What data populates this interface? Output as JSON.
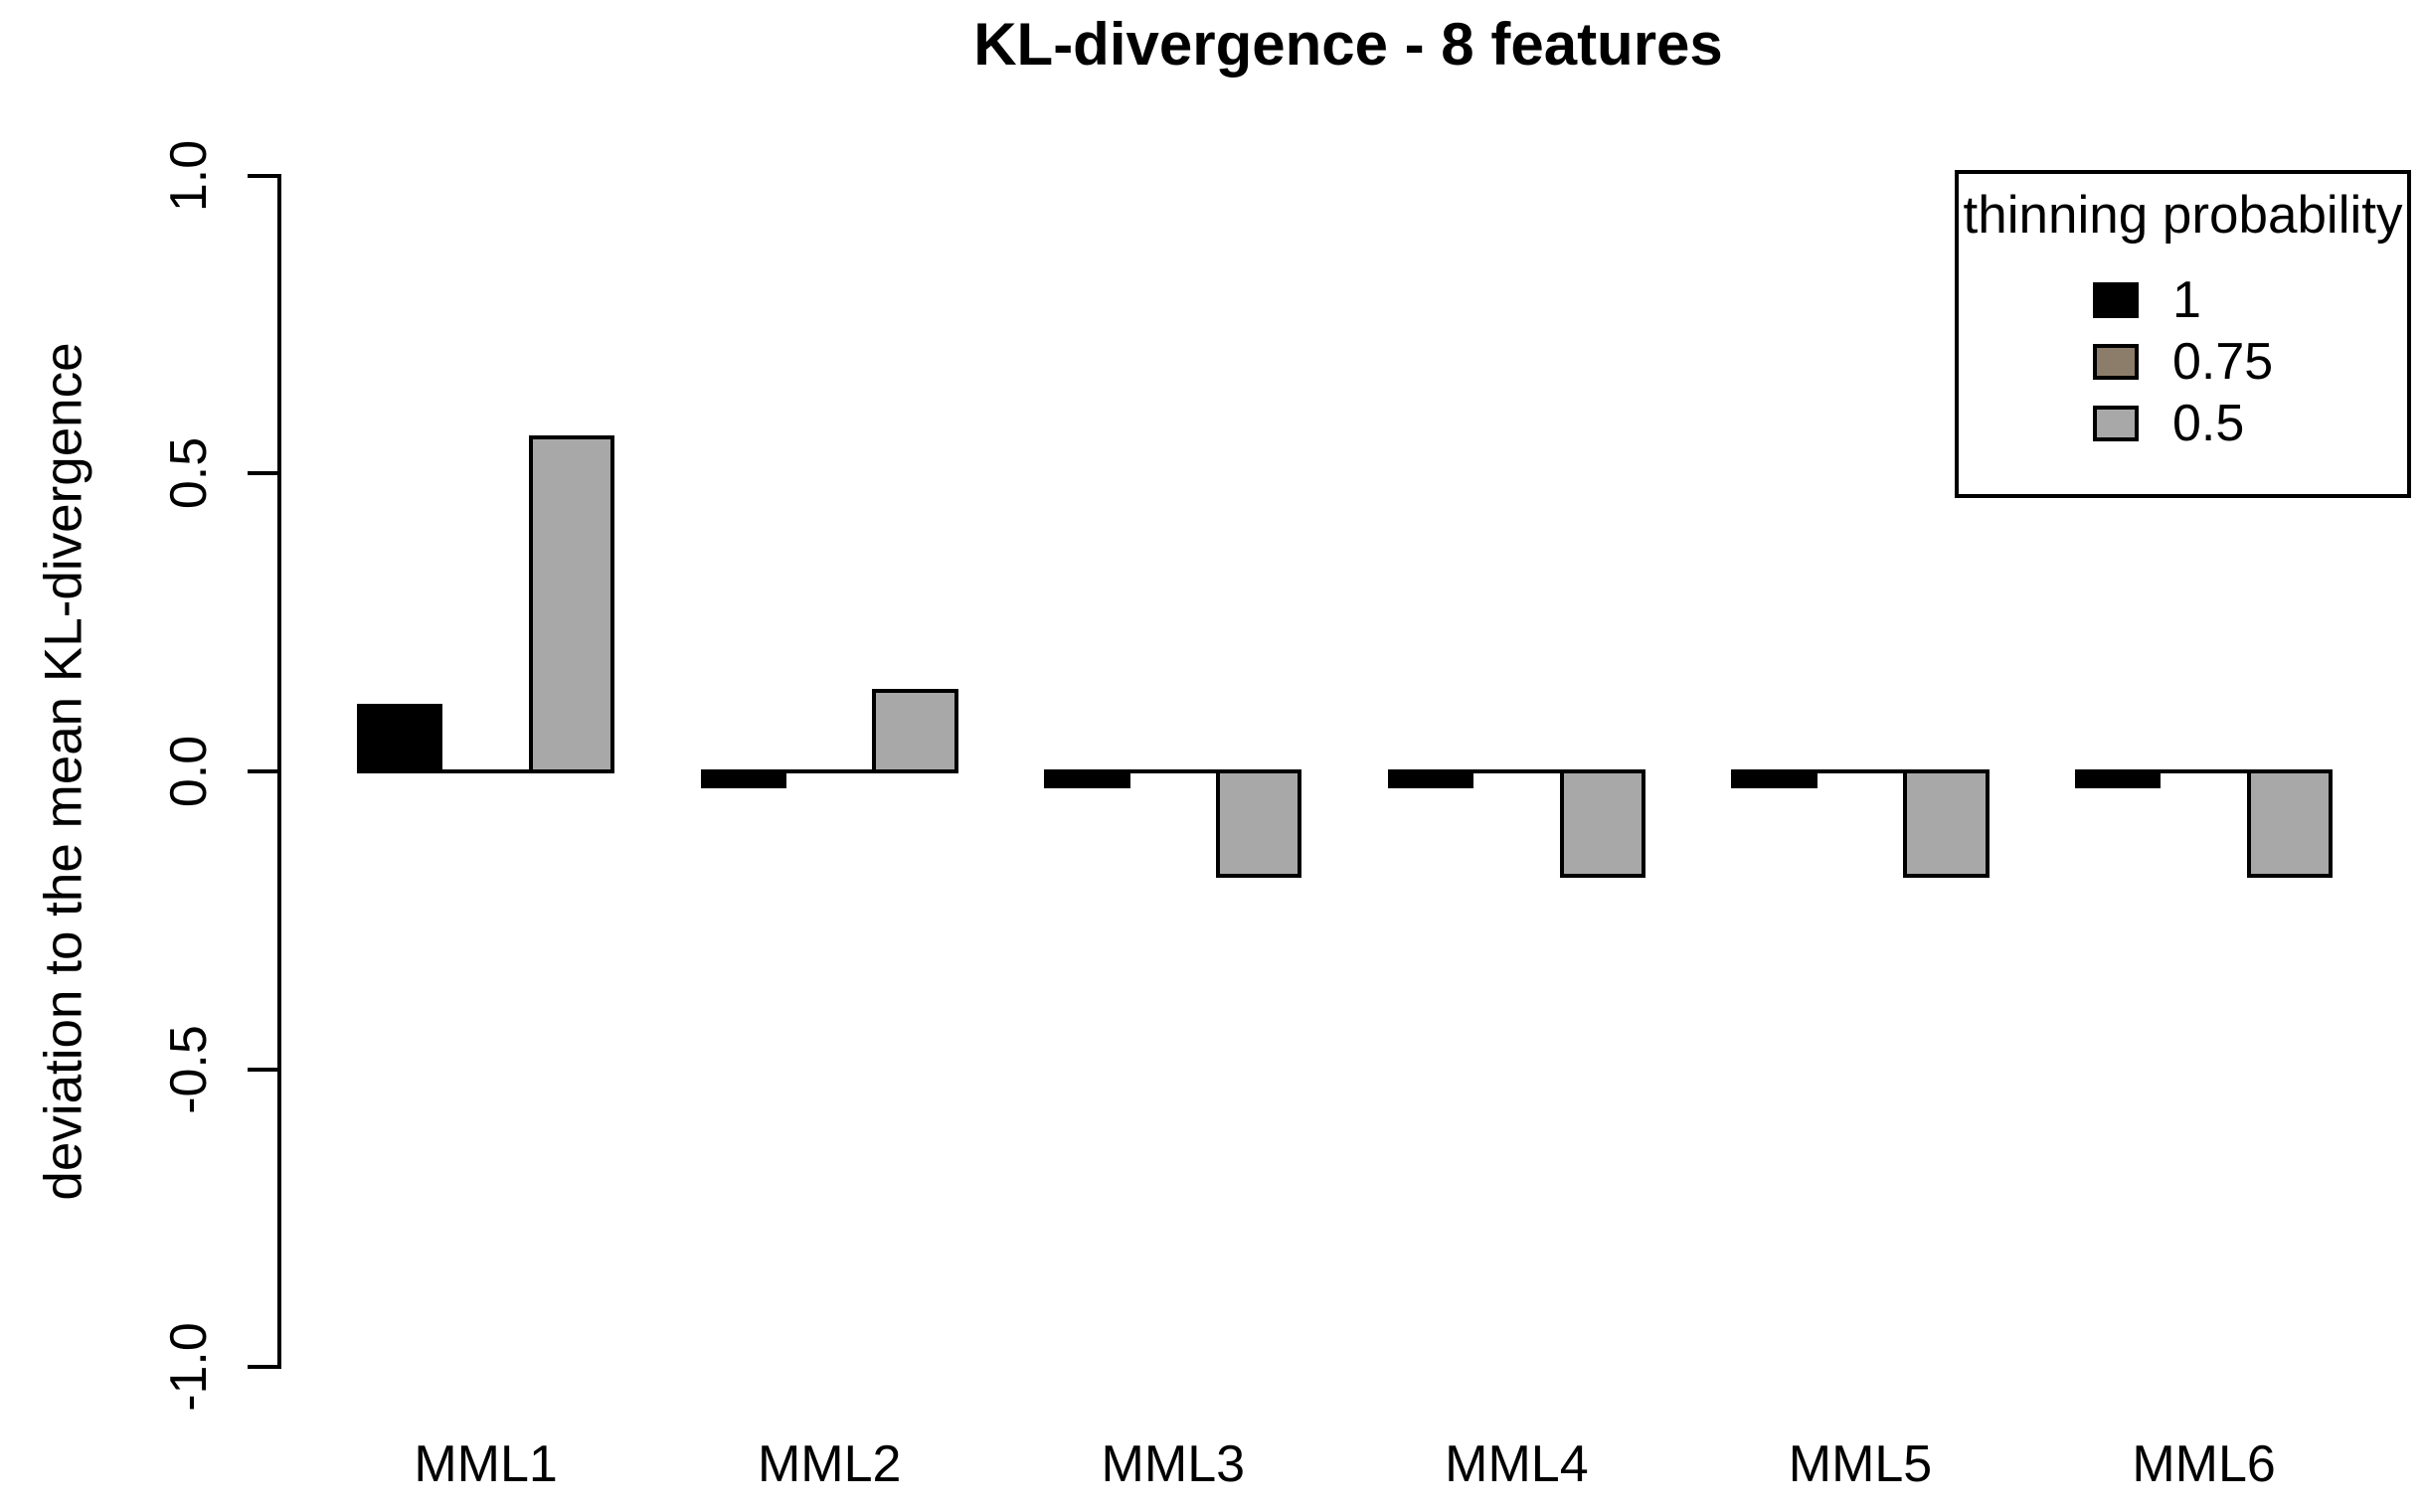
{
  "chart_data": {
    "type": "bar",
    "title": "KL-divergence - 8 features",
    "xlabel": "",
    "ylabel": "deviation to the mean KL-divergence",
    "categories": [
      "MML1",
      "MML2",
      "MML3",
      "MML4",
      "MML5",
      "MML6"
    ],
    "series": [
      {
        "name": "1",
        "color": "#000000",
        "values": [
          0.11,
          -0.025,
          -0.025,
          -0.025,
          -0.025,
          -0.025
        ]
      },
      {
        "name": "0.75",
        "color": "#8b7d69",
        "values": [
          0,
          0,
          0,
          0,
          0,
          0
        ]
      },
      {
        "name": "0.5",
        "color": "#a8a8a8",
        "values": [
          0.56,
          0.135,
          -0.175,
          -0.175,
          -0.175,
          -0.175
        ]
      }
    ],
    "ylim": [
      -1.0,
      1.0
    ],
    "yticks": [
      {
        "label": "1.0",
        "value": 1.0
      },
      {
        "label": "0.5",
        "value": 0.5
      },
      {
        "label": "0.0",
        "value": 0.0
      },
      {
        "label": "-0.5",
        "value": -0.5
      },
      {
        "label": "-1.0",
        "value": -1.0
      }
    ],
    "grid": false,
    "bar_border_color": "#000000",
    "background": "#ffffff",
    "legend": {
      "title": "thinning probability",
      "position": "top-right",
      "entries": [
        "1",
        "0.75",
        "0.5"
      ]
    }
  }
}
